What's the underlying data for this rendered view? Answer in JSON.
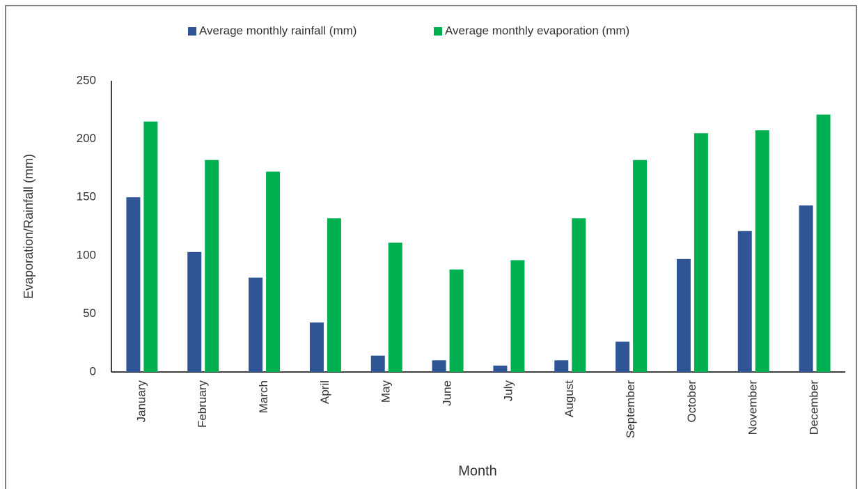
{
  "chart_data": {
    "type": "bar",
    "categories": [
      "January",
      "February",
      "March",
      "April",
      "May",
      "June",
      "July",
      "August",
      "September",
      "October",
      "November",
      "December"
    ],
    "series": [
      {
        "name": "Average monthly rainfall (mm)",
        "color": "#2f5597",
        "values": [
          150,
          103,
          81,
          42.5,
          14,
          10,
          5.5,
          10,
          26,
          97,
          121,
          143
        ]
      },
      {
        "name": "Average monthly evaporation (mm)",
        "color": "#00b050",
        "values": [
          215,
          182,
          172,
          132,
          111,
          88,
          96,
          132,
          182,
          205,
          207.5,
          221
        ]
      }
    ],
    "x_label": "Month",
    "y_label": "Evaporation/Rainfall (mm)",
    "ylim": [
      0,
      250
    ],
    "yticks": [
      0,
      50,
      100,
      150,
      200,
      250
    ],
    "grid": false,
    "legend": "top"
  }
}
